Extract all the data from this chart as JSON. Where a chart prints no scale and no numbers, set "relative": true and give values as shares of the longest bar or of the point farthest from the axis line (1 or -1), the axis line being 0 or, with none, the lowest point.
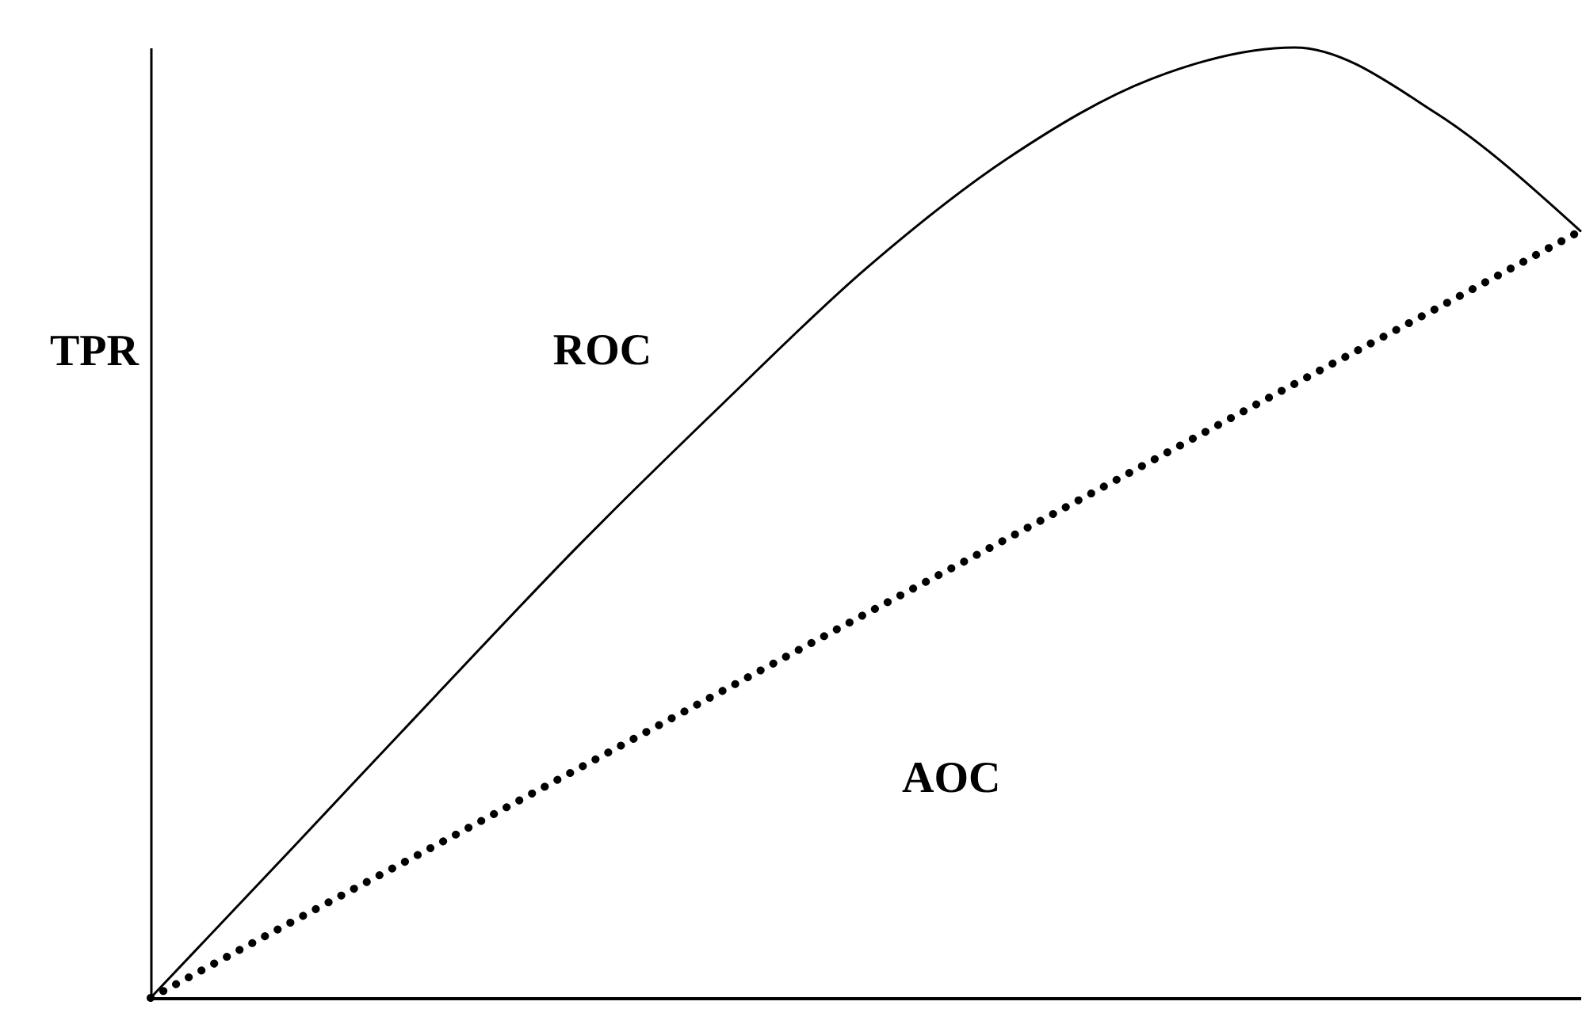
{
  "chart_data": {
    "type": "line",
    "relative": true,
    "ylabel": "TPR",
    "categories": [
      null,
      null,
      null,
      null,
      null,
      null,
      null,
      null,
      null,
      null,
      null
    ],
    "series": [
      {
        "color": "#000000",
        "line_style": "solid",
        "values": [
          0,
          0.159,
          0.319,
          0.477,
          0.625,
          0.767,
          0.884,
          0.967,
          1.0,
          0.93,
          0.807
        ]
      },
      {
        "color": "#000000",
        "line_style": "dotted",
        "values": [
          0,
          0.081,
          0.161,
          0.242,
          0.323,
          0.404,
          0.484,
          0.565,
          0.646,
          0.726,
          0.807
        ]
      }
    ],
    "annotations": [
      "ROC",
      "AOC"
    ],
    "grid": false,
    "marker": "none"
  }
}
